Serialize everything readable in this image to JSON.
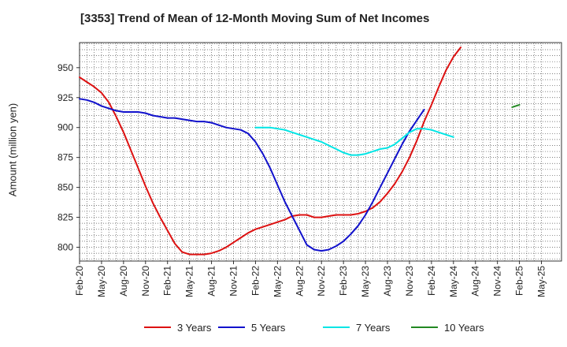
{
  "chart_data": {
    "type": "line",
    "title": "[3353]  Trend of Mean of 12-Month Moving Sum of Net Incomes",
    "ylabel": "Amount (million yen)",
    "xlabel": "",
    "ylim": [
      788,
      970
    ],
    "y_ticks": [
      800,
      825,
      850,
      875,
      900,
      925,
      950
    ],
    "x_tick_labels": [
      "Feb-20",
      "May-20",
      "Aug-20",
      "Nov-20",
      "Feb-21",
      "May-21",
      "Aug-21",
      "Nov-21",
      "Feb-22",
      "May-22",
      "Aug-22",
      "Nov-22",
      "Feb-23",
      "May-23",
      "Aug-23",
      "Nov-23",
      "Feb-24",
      "May-24",
      "Aug-24",
      "Nov-24",
      "Feb-25",
      "May-25"
    ],
    "grid": true,
    "legend_position": "bottom",
    "series": [
      {
        "name": "3 Years",
        "color": "#dd1111",
        "start_month": "Feb-20",
        "values": [
          942,
          938,
          934,
          929,
          921,
          909,
          896,
          881,
          866,
          851,
          837,
          825,
          814,
          803,
          796,
          794,
          794,
          794,
          795,
          797,
          800,
          804,
          808,
          812,
          815,
          817,
          819,
          821,
          823,
          826,
          827,
          827,
          825,
          825,
          826,
          827,
          827,
          827,
          828,
          830,
          833,
          838,
          845,
          853,
          863,
          875,
          889,
          905,
          919,
          934,
          948,
          959,
          967
        ]
      },
      {
        "name": "5 Years",
        "color": "#1111cc",
        "start_month": "Feb-20",
        "values": [
          924,
          923,
          921,
          918,
          916,
          914,
          913,
          913,
          913,
          912,
          910,
          909,
          908,
          908,
          907,
          906,
          905,
          905,
          904,
          902,
          900,
          899,
          898,
          895,
          888,
          878,
          866,
          852,
          838,
          826,
          814,
          802,
          798,
          797,
          798,
          801,
          805,
          811,
          818,
          827,
          838,
          850,
          862,
          874,
          886,
          897,
          906,
          915
        ]
      },
      {
        "name": "7 Years",
        "color": "#00e5e5",
        "start_month": "Feb-22",
        "values": [
          900,
          900,
          900,
          899,
          898,
          896,
          894,
          892,
          890,
          888,
          885,
          882,
          879,
          877,
          877,
          878,
          880,
          882,
          883,
          886,
          891,
          896,
          899,
          899,
          898,
          896,
          894,
          892
        ]
      },
      {
        "name": "10 Years",
        "color": "#228822",
        "start_month": "Jan-25",
        "values": [
          917,
          919
        ]
      }
    ]
  }
}
